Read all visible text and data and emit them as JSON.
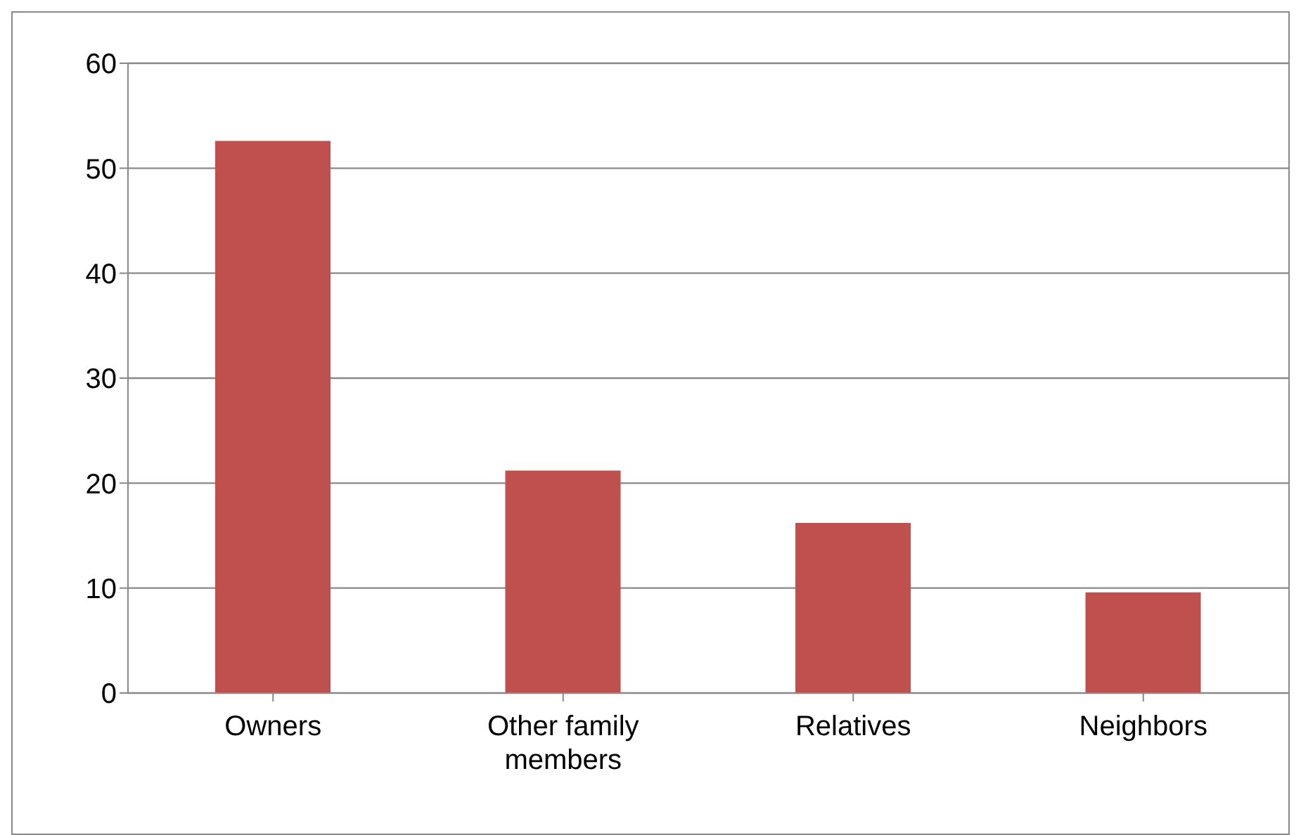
{
  "chart_data": {
    "type": "bar",
    "categories": [
      "Owners",
      "Other family members",
      "Relatives",
      "Neighbors"
    ],
    "values": [
      52.6,
      21.2,
      16.2,
      9.6
    ],
    "color": "#c0504d",
    "ylim": [
      0,
      60
    ],
    "yticks": [
      0,
      10,
      20,
      30,
      40,
      50,
      60
    ],
    "grid": "y"
  }
}
